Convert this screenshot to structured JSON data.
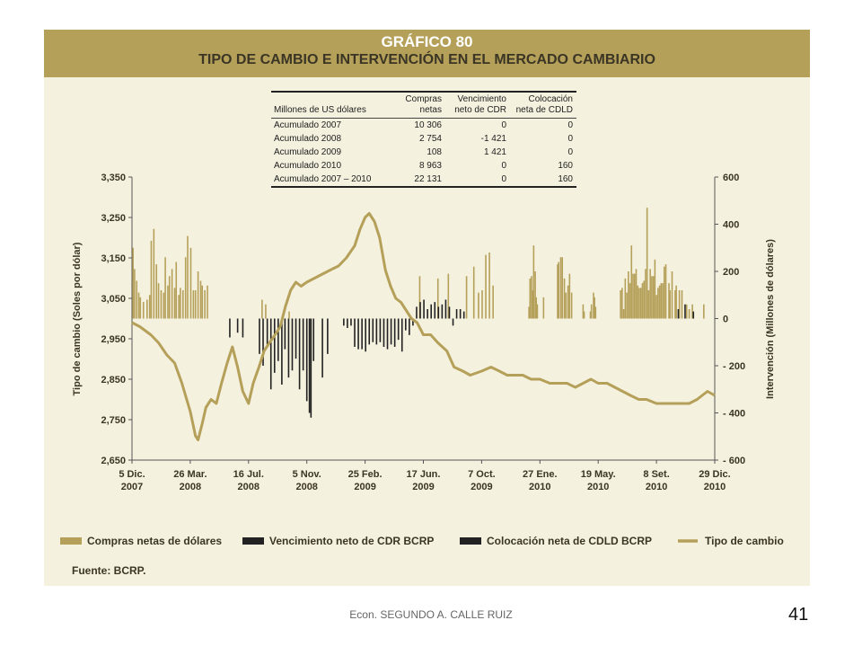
{
  "header": {
    "chart_number": "GRÁFICO 80",
    "title": "TIPO DE CAMBIO E INTERVENCIÓN EN EL MERCADO CAMBIARIO"
  },
  "summary_table": {
    "headers": [
      "Millones de US dólares",
      "Compras netas",
      "Vencimiento neto de CDR",
      "Colocación neta de CDLD"
    ],
    "rows": [
      [
        "Acumulado 2007",
        "10 306",
        "0",
        "0"
      ],
      [
        "Acumulado 2008",
        "2 754",
        "-1 421",
        "0"
      ],
      [
        "Acumulado 2009",
        "108",
        "1 421",
        "0"
      ],
      [
        "Acumulado 2010",
        "8 963",
        "0",
        "160"
      ],
      [
        "Acumulado 2007 – 2010",
        "22 131",
        "0",
        "160"
      ]
    ]
  },
  "chart_data": {
    "type": "bar+line",
    "ylabel_left": "Tipo de cambio (Soles por dólar)",
    "ylabel_right": "Intervención (Millones de dólares)",
    "y_left_ticks": [
      "3,350",
      "3,250",
      "3,150",
      "3,050",
      "2,950",
      "2,850",
      "2,750",
      "2,650"
    ],
    "y_right_ticks": [
      "600",
      "400",
      "200",
      "0",
      "- 200",
      "- 400",
      "- 600"
    ],
    "ylim_left": [
      2.65,
      3.35
    ],
    "ylim_right": [
      -600,
      600
    ],
    "x_ticks": [
      {
        "l1": "5 Dic.",
        "l2": "2007"
      },
      {
        "l1": "26 Mar.",
        "l2": "2008"
      },
      {
        "l1": "16 Jul.",
        "l2": "2008"
      },
      {
        "l1": "5 Nov.",
        "l2": "2008"
      },
      {
        "l1": "25 Feb.",
        "l2": "2009"
      },
      {
        "l1": "17 Jun.",
        "l2": "2009"
      },
      {
        "l1": "7 Oct.",
        "l2": "2009"
      },
      {
        "l1": "27 Ene.",
        "l2": "2010"
      },
      {
        "l1": "19 May.",
        "l2": "2010"
      },
      {
        "l1": "8 Set.",
        "l2": "2010"
      },
      {
        "l1": "29 Dic.",
        "l2": "2010"
      }
    ],
    "legend": [
      {
        "label": "Compras netas de dólares",
        "color": "#b5a05a",
        "kind": "bar"
      },
      {
        "label": "Vencimiento neto de CDR BCRP",
        "color": "#222222",
        "kind": "bar"
      },
      {
        "label": "Colocación neta de CDLD BCRP",
        "color": "#222222",
        "kind": "bar"
      },
      {
        "label": "Tipo de cambio",
        "color": "#b5a05a",
        "kind": "line"
      }
    ],
    "legend_position": "bottom",
    "exchange_rate": {
      "x": [
        "2007-12-05",
        "2007-12-20",
        "2008-01-10",
        "2008-01-25",
        "2008-02-10",
        "2008-02-25",
        "2008-03-10",
        "2008-03-26",
        "2008-04-05",
        "2008-04-10",
        "2008-04-18",
        "2008-04-25",
        "2008-05-05",
        "2008-05-15",
        "2008-05-25",
        "2008-06-05",
        "2008-06-15",
        "2008-06-25",
        "2008-07-05",
        "2008-07-16",
        "2008-07-25",
        "2008-08-05",
        "2008-08-15",
        "2008-08-25",
        "2008-09-05",
        "2008-09-15",
        "2008-09-25",
        "2008-10-05",
        "2008-10-15",
        "2008-10-25",
        "2008-11-05",
        "2008-11-20",
        "2008-12-05",
        "2008-12-20",
        "2009-01-05",
        "2009-01-20",
        "2009-02-05",
        "2009-02-15",
        "2009-02-25",
        "2009-03-05",
        "2009-03-15",
        "2009-03-25",
        "2009-04-05",
        "2009-04-15",
        "2009-04-25",
        "2009-05-05",
        "2009-05-15",
        "2009-05-25",
        "2009-06-05",
        "2009-06-17",
        "2009-07-01",
        "2009-07-15",
        "2009-08-01",
        "2009-08-15",
        "2009-09-01",
        "2009-09-15",
        "2009-10-07",
        "2009-10-25",
        "2009-11-10",
        "2009-11-25",
        "2009-12-10",
        "2009-12-25",
        "2010-01-10",
        "2010-01-27",
        "2010-02-15",
        "2010-03-05",
        "2010-03-20",
        "2010-04-05",
        "2010-04-20",
        "2010-05-05",
        "2010-05-19",
        "2010-06-05",
        "2010-06-20",
        "2010-07-05",
        "2010-07-20",
        "2010-08-05",
        "2010-08-20",
        "2010-09-08",
        "2010-09-25",
        "2010-10-10",
        "2010-10-25",
        "2010-11-10",
        "2010-11-25",
        "2010-12-05",
        "2010-12-15",
        "2010-12-29"
      ],
      "y": [
        2.99,
        2.98,
        2.96,
        2.94,
        2.91,
        2.89,
        2.84,
        2.77,
        2.71,
        2.7,
        2.74,
        2.78,
        2.8,
        2.79,
        2.84,
        2.89,
        2.93,
        2.88,
        2.82,
        2.79,
        2.84,
        2.88,
        2.92,
        2.94,
        2.96,
        2.98,
        3.03,
        3.07,
        3.09,
        3.08,
        3.09,
        3.1,
        3.11,
        3.12,
        3.13,
        3.15,
        3.18,
        3.22,
        3.25,
        3.26,
        3.24,
        3.2,
        3.12,
        3.08,
        3.05,
        3.04,
        3.02,
        3.0,
        2.99,
        2.96,
        2.96,
        2.94,
        2.92,
        2.88,
        2.87,
        2.86,
        2.87,
        2.88,
        2.87,
        2.86,
        2.86,
        2.86,
        2.85,
        2.85,
        2.84,
        2.84,
        2.84,
        2.83,
        2.84,
        2.85,
        2.84,
        2.84,
        2.83,
        2.82,
        2.81,
        2.8,
        2.8,
        2.79,
        2.79,
        2.79,
        2.79,
        2.79,
        2.8,
        2.81,
        2.82,
        2.81
      ]
    },
    "compras_netas": {
      "x": [
        "2007-12-07",
        "2007-12-10",
        "2007-12-14",
        "2007-12-18",
        "2007-12-21",
        "2007-12-27",
        "2008-01-03",
        "2008-01-08",
        "2008-01-11",
        "2008-01-16",
        "2008-01-21",
        "2008-01-25",
        "2008-01-30",
        "2008-02-04",
        "2008-02-07",
        "2008-02-12",
        "2008-02-15",
        "2008-02-20",
        "2008-02-25",
        "2008-02-28",
        "2008-03-04",
        "2008-03-07",
        "2008-03-12",
        "2008-03-17",
        "2008-03-21",
        "2008-03-27",
        "2008-04-01",
        "2008-04-05",
        "2008-04-10",
        "2008-04-15",
        "2008-04-18",
        "2008-04-23",
        "2008-04-28",
        "2008-08-11",
        "2008-08-18",
        "2008-10-02",
        "2009-06-10",
        "2009-07-15",
        "2009-08-04",
        "2009-09-08",
        "2009-09-22",
        "2009-10-01",
        "2009-10-08",
        "2009-10-15",
        "2009-10-22",
        "2009-10-29",
        "2010-01-06",
        "2010-01-08",
        "2010-01-11",
        "2010-01-13",
        "2010-01-15",
        "2010-01-18",
        "2010-01-20",
        "2010-01-22",
        "2010-02-03",
        "2010-03-02",
        "2010-03-04",
        "2010-03-08",
        "2010-03-11",
        "2010-03-15",
        "2010-03-18",
        "2010-03-22",
        "2010-03-25",
        "2010-03-29",
        "2010-04-20",
        "2010-04-22",
        "2010-05-04",
        "2010-05-06",
        "2010-05-10",
        "2010-05-12",
        "2010-05-14",
        "2010-07-01",
        "2010-07-04",
        "2010-07-07",
        "2010-07-10",
        "2010-07-13",
        "2010-07-16",
        "2010-07-19",
        "2010-07-22",
        "2010-07-25",
        "2010-07-28",
        "2010-07-31",
        "2010-08-03",
        "2010-08-06",
        "2010-08-09",
        "2010-08-12",
        "2010-08-15",
        "2010-08-18",
        "2010-08-21",
        "2010-08-24",
        "2010-08-27",
        "2010-08-30",
        "2010-09-02",
        "2010-09-05",
        "2010-09-08",
        "2010-09-11",
        "2010-09-14",
        "2010-09-17",
        "2010-09-20",
        "2010-09-23",
        "2010-09-26",
        "2010-10-02",
        "2010-10-04",
        "2010-10-08",
        "2010-10-14",
        "2010-10-16",
        "2010-10-22",
        "2010-10-27",
        "2010-11-05",
        "2010-11-10",
        "2010-11-16",
        "2010-12-08"
      ],
      "y": [
        300,
        210,
        160,
        110,
        90,
        70,
        80,
        100,
        330,
        380,
        230,
        150,
        120,
        110,
        260,
        140,
        180,
        210,
        130,
        240,
        100,
        130,
        120,
        260,
        350,
        300,
        120,
        120,
        200,
        160,
        140,
        120,
        140,
        80,
        60,
        30,
        180,
        170,
        190,
        180,
        220,
        110,
        120,
        270,
        280,
        140,
        50,
        170,
        180,
        120,
        310,
        200,
        90,
        60,
        90,
        230,
        240,
        260,
        260,
        170,
        110,
        140,
        190,
        110,
        60,
        30,
        30,
        60,
        110,
        90,
        50,
        120,
        130,
        40,
        170,
        110,
        200,
        150,
        310,
        190,
        190,
        210,
        140,
        130,
        130,
        150,
        160,
        210,
        470,
        120,
        210,
        180,
        180,
        250,
        100,
        130,
        140,
        150,
        150,
        220,
        230,
        150,
        120,
        200,
        120,
        140,
        120,
        120,
        60,
        40,
        60,
        60
      ]
    },
    "vencimiento_cdr": {
      "x": [
        "2008-06-10",
        "2008-06-25",
        "2008-07-05",
        "2008-08-06",
        "2008-08-13",
        "2008-08-21",
        "2008-08-28",
        "2008-09-04",
        "2008-09-11",
        "2008-09-18",
        "2008-09-24",
        "2008-10-01",
        "2008-10-08",
        "2008-10-15",
        "2008-10-22",
        "2008-10-29",
        "2008-11-05",
        "2008-11-10",
        "2008-11-13",
        "2008-11-18",
        "2008-12-05",
        "2008-12-15",
        "2009-01-15",
        "2009-01-22",
        "2009-01-29",
        "2009-02-05",
        "2009-02-12",
        "2009-02-19",
        "2009-02-26",
        "2009-03-05",
        "2009-03-12",
        "2009-03-19",
        "2009-03-26",
        "2009-04-02",
        "2009-04-09",
        "2009-04-16",
        "2009-04-23",
        "2009-04-30",
        "2009-05-07",
        "2009-05-14",
        "2009-05-21",
        "2009-05-28",
        "2009-06-04",
        "2009-06-11",
        "2009-06-18",
        "2009-06-25",
        "2009-07-02",
        "2009-07-09",
        "2009-07-16",
        "2009-07-23",
        "2009-07-30",
        "2009-08-06",
        "2009-08-13",
        "2009-08-20",
        "2009-08-27",
        "2009-09-03"
      ],
      "y": [
        -80,
        -60,
        -80,
        -150,
        -200,
        -110,
        -300,
        -230,
        -180,
        -280,
        -130,
        -250,
        -220,
        -170,
        -300,
        -220,
        -350,
        -400,
        -420,
        -180,
        -250,
        -150,
        -30,
        -40,
        -30,
        -120,
        -130,
        -130,
        -140,
        -110,
        -100,
        -110,
        -100,
        -120,
        -130,
        -110,
        -120,
        -90,
        -140,
        -50,
        -70,
        -30,
        50,
        70,
        80,
        40,
        60,
        70,
        50,
        60,
        80,
        50,
        -30,
        40,
        40,
        30
      ]
    },
    "colocacion_cdld": {
      "x": [
        "2010-10-20",
        "2010-11-02",
        "2010-11-18"
      ],
      "y": [
        40,
        60,
        30
      ]
    },
    "source": "Fuente: BCRP."
  },
  "footer": {
    "author": "Econ. SEGUNDO A. CALLE RUIZ",
    "page": "41"
  }
}
